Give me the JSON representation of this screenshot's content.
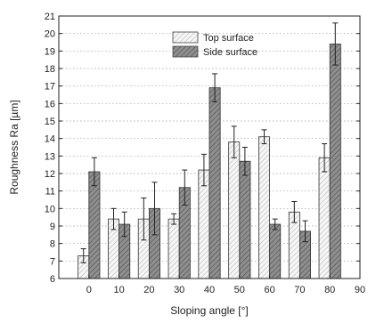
{
  "chart_data": {
    "type": "bar",
    "xlabel": "Sloping angle [°]",
    "ylabel": "Roughness Ra [µm]",
    "xlim": [
      -10,
      90
    ],
    "ylim": [
      6,
      21
    ],
    "xticks": [
      0,
      10,
      20,
      30,
      40,
      50,
      60,
      70,
      80,
      90
    ],
    "yticks": [
      6,
      7,
      8,
      9,
      10,
      11,
      12,
      13,
      14,
      15,
      16,
      17,
      18,
      19,
      20,
      21
    ],
    "grid": "dotted horizontal",
    "legend_position": "top-center",
    "categories": [
      0,
      10,
      20,
      30,
      40,
      50,
      60,
      70,
      80
    ],
    "series": [
      {
        "name": "Top surface",
        "fill": "hatched-light",
        "color": "#f0f0f0",
        "values": [
          7.3,
          9.4,
          9.4,
          9.4,
          12.2,
          13.8,
          14.1,
          9.8,
          12.9
        ],
        "errors": [
          0.4,
          0.6,
          1.2,
          0.3,
          0.9,
          0.9,
          0.4,
          0.6,
          0.8
        ]
      },
      {
        "name": "Side surface",
        "fill": "hatched-dark",
        "color": "#8a8a8a",
        "values": [
          12.1,
          9.1,
          10.0,
          11.2,
          16.9,
          12.7,
          9.1,
          8.7,
          19.4
        ],
        "errors": [
          0.8,
          0.7,
          1.5,
          1.0,
          0.8,
          0.8,
          0.3,
          0.6,
          1.2
        ]
      }
    ]
  }
}
